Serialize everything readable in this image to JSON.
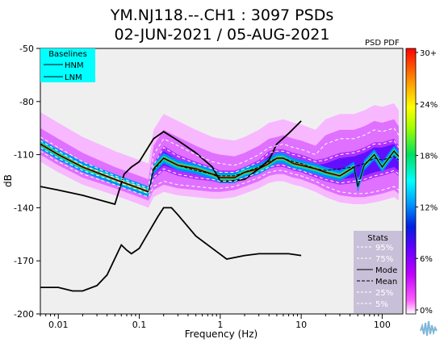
{
  "page": {
    "background": "#ffffff"
  },
  "chart_data": {
    "type": "line",
    "title": "YM.NJ118.--.CH1 : 3097 PSDs",
    "subtitle": "02-JUN-2021 / 05-AUG-2021",
    "xlabel": "Frequency (Hz)",
    "ylabel": "dB",
    "xscale": "log",
    "xlim": [
      0.006,
      180
    ],
    "ylim": [
      -200,
      -50
    ],
    "x_ticks": [
      0.01,
      0.1,
      1,
      10,
      100
    ],
    "x_tick_labels": [
      "0.01",
      "0.1",
      "1",
      "10",
      "100"
    ],
    "y_ticks": [
      -50,
      -80,
      -110,
      -140,
      -170,
      -200
    ],
    "y_tick_labels": [
      "-50",
      "-80",
      "-110",
      "-140",
      "-170",
      "-200"
    ],
    "grid": false,
    "plot_background": "#efefef",
    "colorbar": {
      "title": "PSD PDF",
      "tick_labels": [
        "30+",
        "24%",
        "18%",
        "12%",
        "6%",
        "0%"
      ],
      "colors": [
        "#ff0000",
        "#ff8c00",
        "#ffff00",
        "#00e000",
        "#00ffff",
        "#0060ff",
        "#0000c8",
        "#a000ff",
        "#ff00ff",
        "#ffffff"
      ]
    },
    "baselines_legend": {
      "title": "Baselines",
      "entries": [
        "HNM",
        "LNM"
      ],
      "background": "#00ffff",
      "placement": "top-left"
    },
    "stats_legend": {
      "title": "Stats",
      "entries": [
        "95%",
        "75%",
        "Mode",
        "Mean",
        "25%",
        "5%"
      ],
      "background": "#c8c0d8",
      "placement": "bottom-right"
    },
    "series": [
      {
        "name": "HNM",
        "color": "#000000",
        "x": [
          0.006,
          0.01,
          0.02,
          0.05,
          0.065,
          0.08,
          0.1,
          0.15,
          0.2,
          0.3,
          0.5,
          0.8,
          1,
          1.3,
          2,
          3,
          4,
          5,
          7,
          10
        ],
        "y": [
          -128,
          -130,
          -133,
          -138,
          -121,
          -117,
          -114,
          -101,
          -97,
          -102,
          -109,
          -117,
          -125,
          -125,
          -124,
          -118,
          -113,
          -104,
          -98,
          -91
        ]
      },
      {
        "name": "LNM",
        "color": "#000000",
        "x": [
          0.006,
          0.01,
          0.015,
          0.02,
          0.03,
          0.04,
          0.06,
          0.07,
          0.08,
          0.1,
          0.13,
          0.17,
          0.2,
          0.25,
          0.3,
          0.5,
          0.8,
          1.2,
          2,
          3,
          5,
          7,
          10
        ],
        "y": [
          -185,
          -185,
          -187,
          -187,
          -184,
          -178,
          -161,
          -164,
          -166,
          -163,
          -154,
          -145,
          -140,
          -140,
          -144,
          -156,
          -163,
          -169,
          -167,
          -166,
          -166,
          -166,
          -167
        ]
      },
      {
        "name": "95%",
        "x": [
          0.006,
          0.01,
          0.02,
          0.05,
          0.1,
          0.13,
          0.15,
          0.2,
          0.3,
          0.5,
          0.8,
          1,
          1.5,
          2,
          3,
          4,
          5,
          6,
          8,
          10,
          15,
          20,
          30,
          45,
          60,
          80,
          100,
          140,
          160
        ],
        "y": [
          -100,
          -106,
          -114,
          -122,
          -127,
          -129,
          -110,
          -101,
          -105,
          -110,
          -114,
          -115,
          -116,
          -114,
          -110,
          -106,
          -105,
          -104,
          -106,
          -107,
          -110,
          -104,
          -101,
          -101,
          -99,
          -96,
          -97,
          -95,
          -99
        ]
      },
      {
        "name": "75%",
        "x": [
          0.006,
          0.01,
          0.02,
          0.05,
          0.1,
          0.13,
          0.15,
          0.2,
          0.3,
          0.5,
          0.8,
          1,
          1.5,
          2,
          3,
          4,
          5,
          6,
          8,
          10,
          15,
          20,
          30,
          45,
          60,
          80,
          100,
          140,
          160
        ],
        "y": [
          -102,
          -108,
          -116,
          -123,
          -128,
          -130,
          -116,
          -106,
          -111,
          -115,
          -118,
          -120,
          -120,
          -118,
          -114,
          -109,
          -108,
          -108,
          -110,
          -111,
          -114,
          -113,
          -110,
          -109,
          -107,
          -104,
          -104,
          -102,
          -106
        ]
      },
      {
        "name": "Mode",
        "color": "#000000",
        "x": [
          0.006,
          0.01,
          0.02,
          0.05,
          0.1,
          0.13,
          0.15,
          0.2,
          0.3,
          0.5,
          0.8,
          1,
          1.5,
          2,
          3,
          4,
          5,
          6,
          8,
          10,
          15,
          20,
          30,
          45,
          50,
          60,
          80,
          100,
          140,
          160
        ],
        "y": [
          -104,
          -110,
          -117,
          -124,
          -129,
          -131,
          -118,
          -112,
          -116,
          -118,
          -121,
          -123,
          -123,
          -120,
          -118,
          -115,
          -112,
          -112,
          -115,
          -116,
          -118,
          -120,
          -122,
          -117,
          -128,
          -116,
          -110,
          -117,
          -108,
          -111
        ]
      },
      {
        "name": "Mean",
        "color": "#000000",
        "x": [
          0.006,
          0.01,
          0.02,
          0.05,
          0.1,
          0.13,
          0.15,
          0.2,
          0.3,
          0.5,
          0.8,
          1,
          1.5,
          2,
          3,
          4,
          5,
          6,
          8,
          10,
          15,
          20,
          30,
          45,
          60,
          80,
          100,
          140,
          160
        ],
        "y": [
          -104,
          -110,
          -117,
          -124,
          -129,
          -131,
          -119,
          -112,
          -116,
          -119,
          -121,
          -122,
          -122,
          -120,
          -117,
          -114,
          -112,
          -112,
          -114,
          -115,
          -118,
          -119,
          -118,
          -117,
          -115,
          -112,
          -113,
          -111,
          -113
        ]
      },
      {
        "name": "25%",
        "x": [
          0.006,
          0.01,
          0.02,
          0.05,
          0.1,
          0.13,
          0.15,
          0.2,
          0.3,
          0.5,
          0.8,
          1,
          1.5,
          2,
          3,
          4,
          5,
          6,
          8,
          10,
          15,
          20,
          30,
          45,
          60,
          80,
          100,
          140,
          160
        ],
        "y": [
          -106,
          -112,
          -119,
          -125,
          -130,
          -132,
          -123,
          -118,
          -121,
          -123,
          -124,
          -125,
          -125,
          -123,
          -120,
          -117,
          -116,
          -116,
          -118,
          -119,
          -122,
          -124,
          -126,
          -125,
          -124,
          -122,
          -121,
          -119,
          -121
        ]
      },
      {
        "name": "5%",
        "x": [
          0.006,
          0.01,
          0.02,
          0.05,
          0.1,
          0.13,
          0.15,
          0.2,
          0.3,
          0.5,
          0.8,
          1,
          1.5,
          2,
          3,
          4,
          5,
          6,
          8,
          10,
          15,
          20,
          30,
          45,
          60,
          80,
          100,
          140,
          160
        ],
        "y": [
          -108,
          -114,
          -121,
          -127,
          -132,
          -134,
          -128,
          -125,
          -127,
          -128,
          -129,
          -129,
          -128,
          -126,
          -123,
          -120,
          -119,
          -119,
          -121,
          -122,
          -125,
          -128,
          -131,
          -132,
          -132,
          -131,
          -130,
          -128,
          -130
        ]
      }
    ]
  },
  "logo": {
    "name": "iris-wave-logo"
  }
}
